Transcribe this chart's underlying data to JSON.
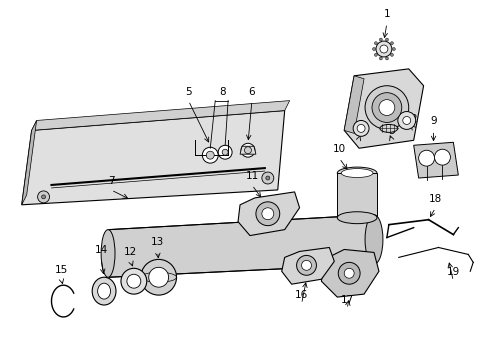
{
  "background_color": "#ffffff",
  "figure_width": 4.89,
  "figure_height": 3.6,
  "dpi": 100,
  "line_color": "#000000",
  "gray_light": "#e8e8e8",
  "gray_med": "#cccccc",
  "gray_dark": "#aaaaaa"
}
